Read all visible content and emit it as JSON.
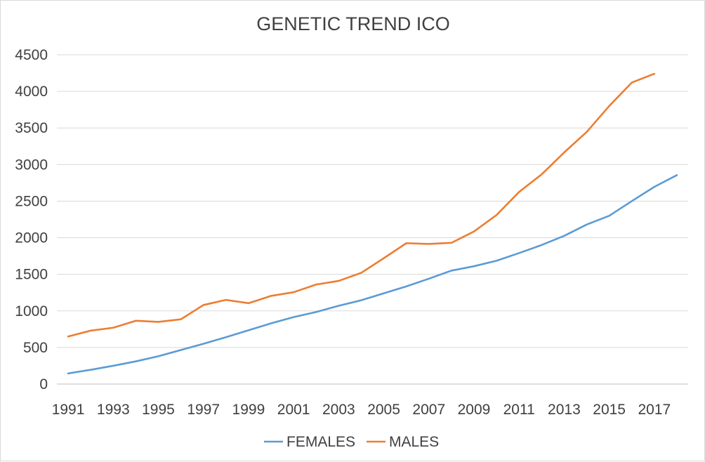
{
  "chart_data": {
    "type": "line",
    "title": "GENETIC TREND ICO",
    "xlabel": "",
    "ylabel": "",
    "x": [
      1991,
      1992,
      1993,
      1994,
      1995,
      1996,
      1997,
      1998,
      1999,
      2000,
      2001,
      2002,
      2003,
      2004,
      2005,
      2006,
      2007,
      2008,
      2009,
      2010,
      2011,
      2012,
      2013,
      2014,
      2015,
      2016,
      2017,
      2018
    ],
    "x_tick_labels": [
      "1991",
      "1993",
      "1995",
      "1997",
      "1999",
      "2001",
      "2003",
      "2005",
      "2007",
      "2009",
      "2011",
      "2013",
      "2015",
      "2017"
    ],
    "y_ticks": [
      0,
      500,
      1000,
      1500,
      2000,
      2500,
      3000,
      3500,
      4000,
      4500
    ],
    "y_tick_labels": [
      "0",
      "500",
      "1000",
      "1500",
      "2000",
      "2500",
      "3000",
      "3500",
      "4000",
      "4500"
    ],
    "ylim": [
      0,
      4500
    ],
    "grid": true,
    "legend_position": "bottom",
    "series": [
      {
        "name": "FEMALES",
        "color": "#5b9bd5",
        "values": [
          145,
          195,
          250,
          310,
          380,
          465,
          550,
          640,
          735,
          830,
          915,
          985,
          1070,
          1145,
          1240,
          1335,
          1440,
          1550,
          1610,
          1685,
          1790,
          1900,
          2025,
          2180,
          2300,
          2500,
          2695,
          2855
        ]
      },
      {
        "name": "MALES",
        "color": "#ed7d31",
        "values": [
          650,
          730,
          770,
          865,
          850,
          885,
          1080,
          1150,
          1105,
          1205,
          1255,
          1360,
          1410,
          1520,
          1720,
          1925,
          1915,
          1930,
          2085,
          2310,
          2625,
          2865,
          3165,
          3445,
          3800,
          4120,
          4240,
          null
        ]
      }
    ]
  }
}
